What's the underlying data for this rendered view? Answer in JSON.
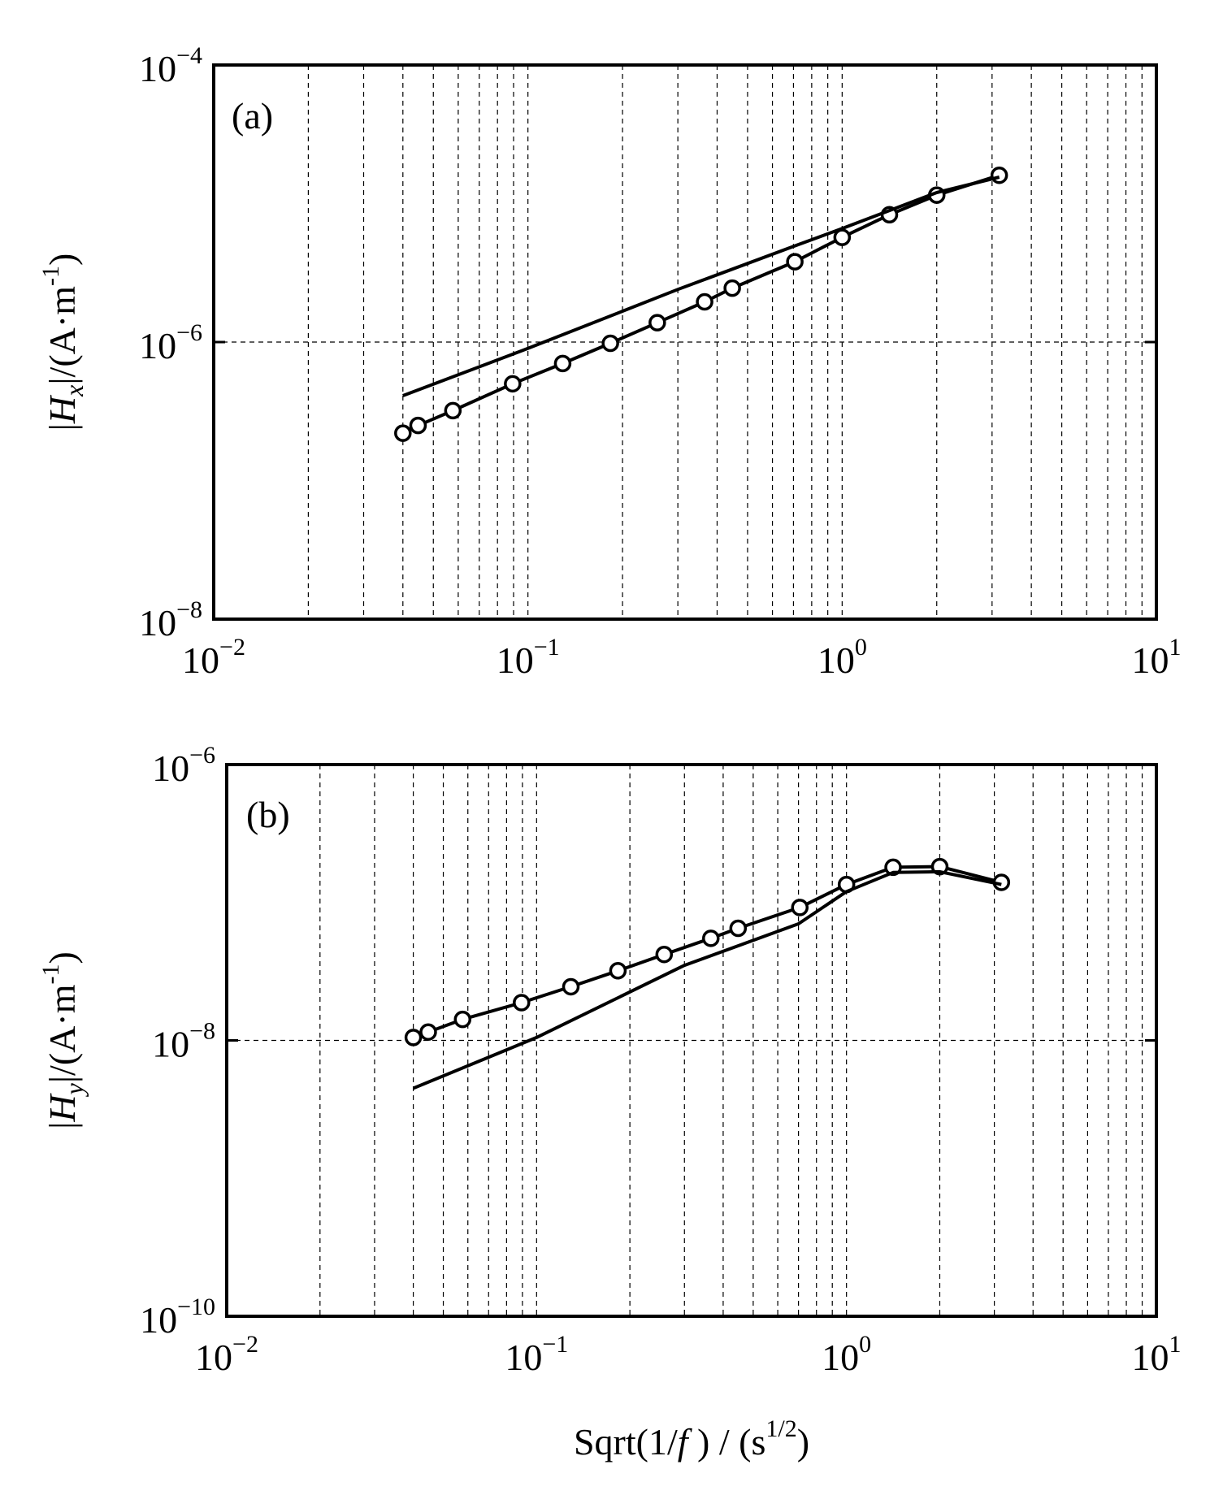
{
  "chart_data": [
    {
      "type": "line",
      "panel_label": "(a)",
      "xscale": "log",
      "yscale": "log",
      "xlim": [
        0.01,
        10
      ],
      "ylim": [
        1e-08,
        0.0001
      ],
      "grid": true,
      "ylabel": {
        "bars": "|",
        "var": "H",
        "sub": "x",
        "units_pre": "/(A·m",
        "units_exp": "-1",
        "units_post": ")"
      },
      "xlabel": "",
      "x_ticks": [
        {
          "base": "10",
          "exp": "−2",
          "value": 0.01
        },
        {
          "base": "10",
          "exp": "−1",
          "value": 0.1
        },
        {
          "base": "10",
          "exp": "0",
          "value": 1
        },
        {
          "base": "10",
          "exp": "1",
          "value": 10
        }
      ],
      "y_ticks": [
        {
          "base": "10",
          "exp": "−4",
          "value": 0.0001
        },
        {
          "base": "10",
          "exp": "−6",
          "value": 1e-06
        },
        {
          "base": "10",
          "exp": "−8",
          "value": 1e-08
        }
      ],
      "series": [
        {
          "marker": "circle",
          "x": [
            0.04,
            0.0447,
            0.0577,
            0.0894,
            0.129,
            0.183,
            0.258,
            0.365,
            0.447,
            0.707,
            1.0,
            1.414,
            2.0,
            3.162
          ],
          "y": [
            2.2e-07,
            2.5e-07,
            3.2e-07,
            5e-07,
            7e-07,
            9.8e-07,
            1.38e-06,
            1.95e-06,
            2.45e-06,
            3.8e-06,
            5.7e-06,
            8.3e-06,
            1.15e-05,
            1.6e-05
          ]
        },
        {
          "marker": "none",
          "x": [
            0.04,
            0.1,
            0.3,
            0.7,
            1.0,
            2.0,
            3.162
          ],
          "y": [
            4.1e-07,
            9e-07,
            2.4e-06,
            4.9e-06,
            6.6e-06,
            1.2e-05,
            1.55e-05
          ]
        }
      ]
    },
    {
      "type": "line",
      "panel_label": "(b)",
      "xscale": "log",
      "yscale": "log",
      "xlim": [
        0.01,
        10
      ],
      "ylim": [
        1e-10,
        1e-06
      ],
      "grid": true,
      "ylabel": {
        "bars": "|",
        "var": "H",
        "sub": "y",
        "units_pre": "/(A·m",
        "units_exp": "-1",
        "units_post": ")"
      },
      "xlabel": {
        "pre": "Sqrt(1/",
        "var": "f",
        "mid": " ) / (s",
        "exp": "1/2",
        "post": ")"
      },
      "x_ticks": [
        {
          "base": "10",
          "exp": "−2",
          "value": 0.01
        },
        {
          "base": "10",
          "exp": "−1",
          "value": 0.1
        },
        {
          "base": "10",
          "exp": "0",
          "value": 1
        },
        {
          "base": "10",
          "exp": "1",
          "value": 10
        }
      ],
      "y_ticks": [
        {
          "base": "10",
          "exp": "−6",
          "value": 1e-06
        },
        {
          "base": "10",
          "exp": "−8",
          "value": 1e-08
        },
        {
          "base": "10",
          "exp": "−10",
          "value": 1e-10
        }
      ],
      "series": [
        {
          "marker": "circle",
          "x": [
            0.04,
            0.0447,
            0.0577,
            0.0894,
            0.129,
            0.183,
            0.258,
            0.365,
            0.447,
            0.707,
            1.0,
            1.414,
            2.0,
            3.162
          ],
          "y": [
            1.05e-08,
            1.15e-08,
            1.42e-08,
            1.88e-08,
            2.45e-08,
            3.2e-08,
            4.2e-08,
            5.5e-08,
            6.5e-08,
            9.2e-08,
            1.35e-07,
            1.8e-07,
            1.82e-07,
            1.4e-07
          ]
        },
        {
          "marker": "none",
          "x": [
            0.04,
            0.1,
            0.3,
            0.7,
            1.0,
            1.414,
            2.0,
            3.162
          ],
          "y": [
            4.5e-09,
            1.05e-08,
            3.5e-08,
            7e-08,
            1.2e-07,
            1.65e-07,
            1.67e-07,
            1.35e-07
          ]
        }
      ]
    }
  ]
}
